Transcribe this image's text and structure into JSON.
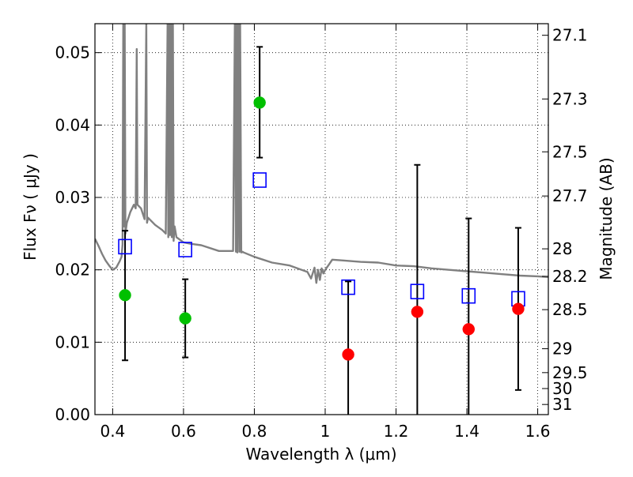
{
  "chart_data": {
    "type": "scatter",
    "xlabel": "Wavelength  λ (μm)",
    "ylabel": "Flux  Fν  ( μJy )",
    "ylabel_right": "Magnitude (AB)",
    "xlim": [
      0.35,
      1.63
    ],
    "ylim": [
      0.0,
      0.054
    ],
    "grid": true,
    "x_ticks": [
      0.4,
      0.6,
      0.8,
      1.0,
      1.2,
      1.4,
      1.6
    ],
    "x_tick_labels": [
      "0.4",
      "0.6",
      "0.8",
      "1",
      "1.2",
      "1.4",
      "1.6"
    ],
    "y_ticks": [
      0.0,
      0.01,
      0.02,
      0.03,
      0.04,
      0.05
    ],
    "y_tick_labels": [
      "0.00",
      "0.01",
      "0.02",
      "0.03",
      "0.04",
      "0.05"
    ],
    "right_ticks": [
      {
        "label": "27.1",
        "flux": 0.0524
      },
      {
        "label": "27.3",
        "flux": 0.0436
      },
      {
        "label": "27.5",
        "flux": 0.0363
      },
      {
        "label": "27.7",
        "flux": 0.0302
      },
      {
        "label": "28",
        "flux": 0.0229
      },
      {
        "label": "28.2",
        "flux": 0.0191
      },
      {
        "label": "28.5",
        "flux": 0.0145
      },
      {
        "label": "29",
        "flux": 0.0091
      },
      {
        "label": "29.5",
        "flux": 0.0058
      },
      {
        "label": "30",
        "flux": 0.0036
      },
      {
        "label": "31",
        "flux": 0.0014
      }
    ],
    "series": [
      {
        "kind": "model-spectrum",
        "color": "#808080",
        "x": [
          0.35,
          0.36,
          0.37,
          0.38,
          0.39,
          0.4,
          0.41,
          0.42,
          0.425,
          0.428,
          0.43,
          0.432,
          0.434,
          0.436,
          0.44,
          0.45,
          0.46,
          0.465,
          0.468,
          0.47,
          0.48,
          0.49,
          0.495,
          0.497,
          0.5,
          0.52,
          0.54,
          0.55,
          0.555,
          0.557,
          0.56,
          0.562,
          0.565,
          0.567,
          0.57,
          0.572,
          0.575,
          0.58,
          0.6,
          0.62,
          0.65,
          0.7,
          0.74,
          0.745,
          0.748,
          0.75,
          0.752,
          0.755,
          0.758,
          0.76,
          0.763,
          0.767,
          0.77,
          0.8,
          0.85,
          0.9,
          0.95,
          0.96,
          0.97,
          0.975,
          0.98,
          0.985,
          0.99,
          0.995,
          1.0,
          1.01,
          1.02,
          1.05,
          1.1,
          1.15,
          1.2,
          1.25,
          1.3,
          1.35,
          1.4,
          1.45,
          1.5,
          1.55,
          1.6,
          1.63
        ],
        "y": [
          0.0243,
          0.0233,
          0.0222,
          0.0213,
          0.0206,
          0.02,
          0.0203,
          0.0212,
          0.0218,
          0.0235,
          0.054,
          0.026,
          0.054,
          0.025,
          0.0265,
          0.028,
          0.029,
          0.0285,
          0.0505,
          0.029,
          0.0285,
          0.027,
          0.054,
          0.0265,
          0.0272,
          0.0262,
          0.0255,
          0.025,
          0.054,
          0.0245,
          0.054,
          0.0248,
          0.054,
          0.0245,
          0.054,
          0.024,
          0.026,
          0.0245,
          0.0238,
          0.0236,
          0.0234,
          0.0226,
          0.0226,
          0.054,
          0.0225,
          0.054,
          0.0224,
          0.054,
          0.0225,
          0.054,
          0.0224,
          0.0225,
          0.0224,
          0.0218,
          0.021,
          0.0206,
          0.0197,
          0.0188,
          0.0203,
          0.0182,
          0.02,
          0.0186,
          0.0202,
          0.0195,
          0.02,
          0.0207,
          0.0214,
          0.0213,
          0.0211,
          0.021,
          0.0206,
          0.0205,
          0.0202,
          0.02,
          0.0198,
          0.0196,
          0.0194,
          0.0192,
          0.0191,
          0.019
        ]
      },
      {
        "kind": "model-photometry",
        "marker": "open-square",
        "color": "#0000ff",
        "x": [
          0.435,
          0.605,
          0.815,
          1.065,
          1.26,
          1.405,
          1.545
        ],
        "y": [
          0.0232,
          0.0228,
          0.0324,
          0.0176,
          0.017,
          0.0164,
          0.016
        ]
      },
      {
        "kind": "detections",
        "marker": "filled-circle",
        "color": "#00c000",
        "x": [
          0.435,
          0.605,
          0.815
        ],
        "y": [
          0.0165,
          0.0133,
          0.0431
        ],
        "err_low": [
          0.0075,
          0.0079,
          0.0355
        ],
        "err_high": [
          0.0254,
          0.0187,
          0.0508
        ]
      },
      {
        "kind": "upper-limits",
        "marker": "filled-circle",
        "color": "#ff0000",
        "x": [
          1.065,
          1.26,
          1.405,
          1.545
        ],
        "y": [
          0.0083,
          0.0142,
          0.0118,
          0.0146
        ],
        "err_low": [
          0.0,
          0.0,
          0.0,
          0.0034
        ],
        "err_high": [
          0.0184,
          0.0345,
          0.0271,
          0.0258
        ]
      }
    ],
    "errorbar_color": "#000000"
  }
}
